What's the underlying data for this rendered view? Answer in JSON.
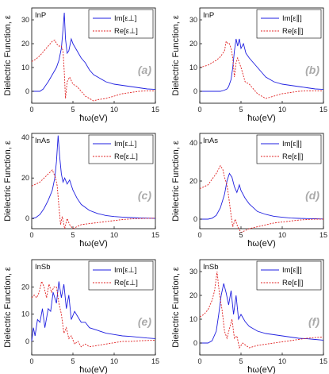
{
  "figure": {
    "y_axis_label": "Dielectric Function, ε",
    "x_axis_label": "ħω(eV)"
  },
  "colors": {
    "im": "#1f1fe0",
    "re": "#e02020"
  },
  "chart_data": [
    {
      "type": "line",
      "panel": "(a)",
      "material": "InP",
      "legend": [
        "Im[ε⊥]",
        "Re[ε⊥]"
      ],
      "xlim": [
        0,
        15
      ],
      "ylim": [
        -5,
        35
      ],
      "xticks": [
        0,
        5,
        10,
        15
      ],
      "yticks": [
        0,
        10,
        20,
        30
      ],
      "series": [
        {
          "name": "Im[ε⊥]",
          "x": [
            0,
            1,
            1.4,
            1.6,
            2,
            2.5,
            3,
            3.3,
            3.6,
            3.8,
            3.95,
            4.1,
            4.3,
            4.5,
            4.8,
            5,
            5.5,
            6,
            6.5,
            7,
            7.5,
            8,
            9,
            10,
            11,
            12,
            13,
            14,
            15
          ],
          "y": [
            0,
            0,
            1,
            2,
            4,
            7,
            10,
            13,
            18,
            26,
            33,
            22,
            16,
            17,
            22,
            20,
            17,
            14,
            12,
            9,
            7,
            6,
            4,
            3,
            2.5,
            2,
            1.5,
            1,
            0.8
          ]
        },
        {
          "name": "Re[ε⊥]",
          "x": [
            0,
            0.5,
            1,
            1.5,
            2,
            2.5,
            2.8,
            3,
            3.3,
            3.6,
            3.8,
            3.95,
            4.1,
            4.3,
            4.6,
            5,
            5.5,
            6,
            6.5,
            7,
            7.5,
            8,
            9,
            10,
            11,
            12,
            13,
            14,
            15
          ],
          "y": [
            12.5,
            13.5,
            15,
            17,
            19,
            21,
            21.5,
            20,
            19,
            19,
            17,
            8,
            -3,
            4,
            6,
            3,
            2,
            0,
            -2,
            -3,
            -4,
            -3.5,
            -3,
            -2,
            -1,
            -0.5,
            0,
            0.2,
            0.2
          ]
        }
      ]
    },
    {
      "type": "line",
      "panel": "(b)",
      "material": "InP",
      "legend": [
        "Im[ε∥]",
        "Re[ε∥]"
      ],
      "xlim": [
        0,
        15
      ],
      "ylim": [
        -5,
        35
      ],
      "xticks": [
        0,
        5,
        10,
        15
      ],
      "yticks": [
        0,
        10,
        20,
        30
      ],
      "series": [
        {
          "name": "Im[ε∥]",
          "x": [
            0,
            1,
            2,
            2.5,
            3,
            3.3,
            3.5,
            3.8,
            4,
            4.2,
            4.4,
            4.6,
            4.8,
            5,
            5.3,
            5.6,
            6,
            6.5,
            7,
            7.5,
            8,
            9,
            10,
            11,
            12,
            13,
            14,
            15
          ],
          "y": [
            0,
            0,
            0,
            0,
            0.5,
            1,
            2,
            5,
            10,
            17,
            22,
            19,
            22,
            18,
            20,
            16,
            14,
            12,
            10,
            8,
            6,
            4,
            3,
            2.5,
            2,
            1.5,
            1,
            0.8
          ]
        },
        {
          "name": "Re[ε∥]",
          "x": [
            0,
            0.5,
            1,
            1.5,
            2,
            2.5,
            3,
            3.2,
            3.4,
            3.6,
            3.8,
            4,
            4.2,
            4.4,
            4.6,
            5,
            5.5,
            6,
            6.5,
            7,
            7.5,
            8,
            9,
            10,
            11,
            12,
            13,
            14,
            15
          ],
          "y": [
            10,
            10.5,
            11,
            12,
            13,
            14.5,
            17,
            21,
            20,
            20,
            18,
            14,
            6,
            12,
            14,
            10,
            4,
            3,
            1,
            -1,
            -2,
            -3,
            -2,
            -1,
            -0.5,
            0,
            0.2,
            0.2,
            0.2
          ]
        }
      ]
    },
    {
      "type": "line",
      "panel": "(c)",
      "material": "InAs",
      "legend": [
        "Im[ε⊥]",
        "Re[ε⊥]"
      ],
      "xlim": [
        0,
        15
      ],
      "ylim": [
        -5,
        42
      ],
      "xticks": [
        0,
        5,
        10,
        15
      ],
      "yticks": [
        0,
        20,
        40
      ],
      "series": [
        {
          "name": "Im[ε⊥]",
          "x": [
            0,
            0.5,
            1,
            1.5,
            2,
            2.5,
            2.8,
            3,
            3.2,
            3.4,
            3.6,
            3.8,
            4,
            4.3,
            4.6,
            5,
            5.5,
            6,
            7,
            8,
            9,
            10,
            11,
            12,
            13,
            14,
            15
          ],
          "y": [
            0,
            0.5,
            2,
            5,
            9,
            14,
            20,
            28,
            41,
            30,
            22,
            18,
            20,
            17,
            19,
            14,
            10,
            7,
            4,
            2.5,
            1.5,
            1,
            0.7,
            0.5,
            0.3,
            0.2,
            0.1
          ]
        },
        {
          "name": "Re[ε⊥]",
          "x": [
            0,
            0.5,
            1,
            1.5,
            2,
            2.5,
            2.7,
            2.9,
            3.1,
            3.3,
            3.5,
            3.7,
            4,
            4.3,
            4.6,
            5,
            5.5,
            6,
            7,
            8,
            9,
            10,
            11,
            12,
            13,
            14,
            15
          ],
          "y": [
            16,
            17,
            18,
            20,
            22,
            24,
            22,
            20,
            16,
            6,
            -3,
            1,
            -5,
            0,
            -3,
            -5,
            -4,
            -3,
            -2.5,
            -2,
            -1.5,
            -1,
            -0.5,
            -0.2,
            0,
            0.1,
            0.2
          ]
        }
      ]
    },
    {
      "type": "line",
      "panel": "(d)",
      "material": "InAs",
      "legend": [
        "Im[ε∥]",
        "Re[ε∥]"
      ],
      "xlim": [
        0,
        15
      ],
      "ylim": [
        -5,
        45
      ],
      "xticks": [
        0,
        5,
        10,
        15
      ],
      "yticks": [
        0,
        20,
        40
      ],
      "series": [
        {
          "name": "Im[ε∥]",
          "x": [
            0,
            1,
            1.5,
            2,
            2.5,
            3,
            3.3,
            3.6,
            3.9,
            4.2,
            4.5,
            4.8,
            5,
            5.5,
            6,
            6.5,
            7,
            8,
            9,
            10,
            11,
            12,
            13,
            14,
            15
          ],
          "y": [
            0,
            0,
            0.5,
            2,
            6,
            13,
            20,
            24,
            22,
            17,
            14,
            18,
            15,
            11,
            8,
            6,
            4,
            2.5,
            1.5,
            1,
            0.6,
            0.4,
            0.3,
            0.2,
            0.1
          ]
        },
        {
          "name": "Re[ε∥]",
          "x": [
            0,
            0.5,
            1,
            1.5,
            2,
            2.5,
            2.8,
            3,
            3.3,
            3.5,
            3.8,
            4,
            4.3,
            4.6,
            5,
            5.5,
            6,
            6.5,
            7,
            8,
            9,
            10,
            11,
            12,
            13,
            14,
            15
          ],
          "y": [
            16,
            17,
            18,
            21,
            24,
            28,
            26,
            22,
            18,
            12,
            2,
            -4,
            0,
            -4,
            -7,
            -6,
            -5,
            -4.5,
            -4,
            -3,
            -2,
            -1.5,
            -1,
            -0.5,
            -0.2,
            0,
            0
          ]
        }
      ]
    },
    {
      "type": "line",
      "panel": "(e)",
      "material": "InSb",
      "legend": [
        "Im[ε⊥]",
        "Re[ε⊥]"
      ],
      "xlim": [
        0,
        15
      ],
      "ylim": [
        -5,
        30
      ],
      "xticks": [
        0,
        5,
        10,
        15
      ],
      "yticks": [
        0,
        10,
        20
      ],
      "series": [
        {
          "name": "Im[ε⊥]",
          "x": [
            0,
            0.2,
            0.4,
            0.7,
            1,
            1.3,
            1.6,
            2,
            2.3,
            2.6,
            3,
            3.3,
            3.6,
            3.9,
            4.2,
            4.5,
            4.8,
            5.2,
            5.6,
            6,
            6.5,
            7,
            8,
            9,
            10,
            11,
            12,
            13,
            14,
            15
          ],
          "y": [
            0,
            5,
            2,
            8,
            7,
            12,
            5,
            12,
            11,
            18,
            14,
            22,
            16,
            21,
            12,
            17,
            8,
            11,
            9,
            7,
            7,
            5,
            4,
            3,
            2.5,
            2,
            1.8,
            1.5,
            1.2,
            1
          ]
        },
        {
          "name": "Re[ε⊥]",
          "x": [
            0,
            0.3,
            0.6,
            0.9,
            1.2,
            1.5,
            1.8,
            2.1,
            2.4,
            2.7,
            3,
            3.3,
            3.6,
            3.9,
            4.2,
            4.5,
            4.8,
            5.2,
            5.6,
            6,
            6.5,
            7,
            8,
            9,
            10,
            11,
            12,
            13,
            14,
            15
          ],
          "y": [
            16,
            17,
            16,
            18,
            22,
            20,
            16,
            21,
            18,
            20,
            20,
            14,
            10,
            3,
            5,
            1,
            2,
            -1,
            0,
            -2,
            -1,
            -2,
            -1.5,
            -1,
            -0.5,
            0,
            0,
            0.2,
            0.3,
            0.4
          ]
        }
      ]
    },
    {
      "type": "line",
      "panel": "(f)",
      "material": "InSb",
      "legend": [
        "Im[ε∥]",
        "Re[ε∥]"
      ],
      "xlim": [
        0,
        15
      ],
      "ylim": [
        -5,
        35
      ],
      "xticks": [
        0,
        5,
        10,
        15
      ],
      "yticks": [
        0,
        10,
        20,
        30
      ],
      "series": [
        {
          "name": "Im[ε∥]",
          "x": [
            0,
            0.5,
            1,
            1.5,
            2,
            2.3,
            2.6,
            2.9,
            3.2,
            3.5,
            3.8,
            4.1,
            4.4,
            4.7,
            5,
            5.5,
            6,
            6.5,
            7,
            8,
            9,
            10,
            11,
            12,
            13,
            14,
            15
          ],
          "y": [
            0,
            0,
            0,
            1,
            5,
            12,
            20,
            25,
            21,
            16,
            22,
            12,
            20,
            10,
            12,
            9,
            7,
            6,
            5,
            4,
            3.5,
            3,
            2.5,
            2,
            1.8,
            1.5,
            1.2
          ]
        },
        {
          "name": "Re[ε∥]",
          "x": [
            0,
            0.5,
            1,
            1.5,
            1.8,
            2.1,
            2.4,
            2.7,
            3,
            3.3,
            3.6,
            3.9,
            4.2,
            4.5,
            4.8,
            5.2,
            5.6,
            6,
            6.5,
            7,
            8,
            9,
            10,
            11,
            12,
            13,
            14,
            15
          ],
          "y": [
            11,
            12,
            14,
            18,
            22,
            30,
            20,
            14,
            5,
            2,
            6,
            10,
            2,
            3,
            -2,
            0,
            -1,
            -2,
            -1.5,
            -1,
            -0.5,
            0,
            0.5,
            1,
            1.5,
            2,
            2.3,
            2.5
          ]
        }
      ]
    }
  ]
}
